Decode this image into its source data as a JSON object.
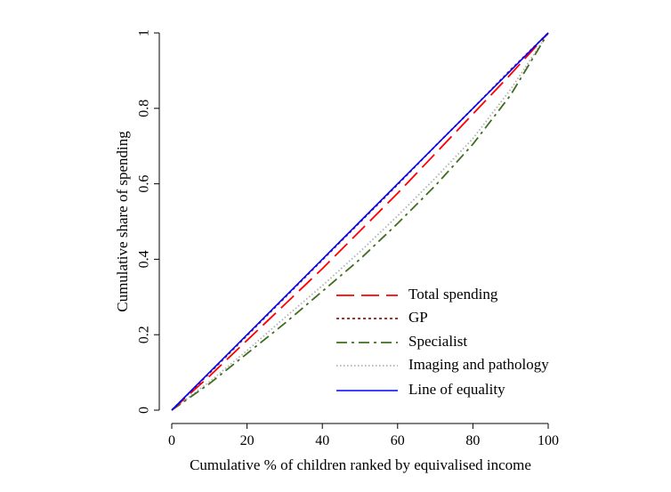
{
  "chart_data": {
    "type": "line",
    "title": "",
    "xlabel": "Cumulative % of children ranked by equivalised income",
    "ylabel": "Cumulative share of spending",
    "xlim": [
      0,
      100
    ],
    "ylim": [
      0,
      1
    ],
    "x_ticks": [
      0,
      20,
      40,
      60,
      80,
      100
    ],
    "x_tick_labels": [
      "0",
      "20",
      "40",
      "60",
      "80",
      "100"
    ],
    "y_ticks": [
      0,
      0.2,
      0.4,
      0.6,
      0.8,
      1
    ],
    "y_tick_labels": [
      "0",
      "0.2",
      "0.4",
      "0.6",
      "0.8",
      "1"
    ],
    "grid": false,
    "legend_position": "bottom-right inside",
    "x": [
      0,
      10,
      20,
      30,
      40,
      50,
      60,
      70,
      80,
      90,
      100
    ],
    "series": [
      {
        "name": "Total spending",
        "style": "long-dash",
        "color": "#ff0000",
        "values": [
          0,
          0.09,
          0.185,
          0.28,
          0.375,
          0.475,
          0.575,
          0.68,
          0.785,
          0.89,
          1.0
        ]
      },
      {
        "name": "GP",
        "style": "dotted",
        "color": "#8b1a1a",
        "values": [
          0,
          0.098,
          0.198,
          0.298,
          0.398,
          0.498,
          0.598,
          0.7,
          0.8,
          0.902,
          1.0
        ]
      },
      {
        "name": "Specialist",
        "style": "dash-dot",
        "color": "#3f6e1f",
        "values": [
          0,
          0.07,
          0.15,
          0.23,
          0.315,
          0.4,
          0.495,
          0.595,
          0.705,
          0.835,
          1.0
        ]
      },
      {
        "name": "Imaging and pathology",
        "style": "fine-dotted",
        "color": "#b0b0b0",
        "values": [
          0,
          0.075,
          0.158,
          0.245,
          0.33,
          0.42,
          0.515,
          0.615,
          0.72,
          0.85,
          1.0
        ]
      },
      {
        "name": "Line of equality",
        "style": "solid",
        "color": "#0000ff",
        "values": [
          0,
          0.1,
          0.2,
          0.3,
          0.4,
          0.5,
          0.6,
          0.7,
          0.8,
          0.9,
          1.0
        ]
      }
    ]
  }
}
